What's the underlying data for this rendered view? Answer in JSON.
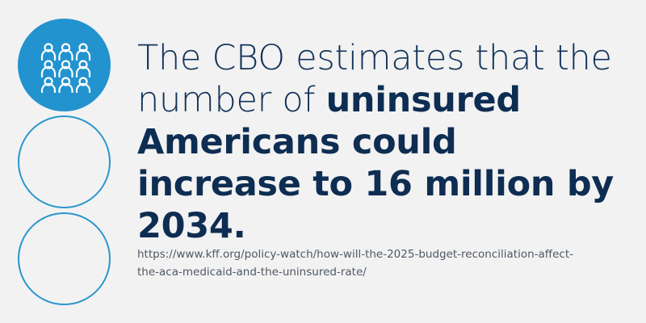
{
  "headline": {
    "part1": "The CBO estimates that the number of ",
    "part2": "uninsured Americans could increase to 16 million by 2034."
  },
  "source_url_line1": "https://www.kff.org/policy-watch/how-will-the-2025-budget-reconciliation-affect-",
  "source_url_line2": "the-aca-medicaid-and-the-uninsured-rate/",
  "icons": [
    "people-group-icon"
  ],
  "colors": {
    "accent": "#2393cf",
    "headline": "#0e2d52",
    "background": "#f2f2f2"
  }
}
